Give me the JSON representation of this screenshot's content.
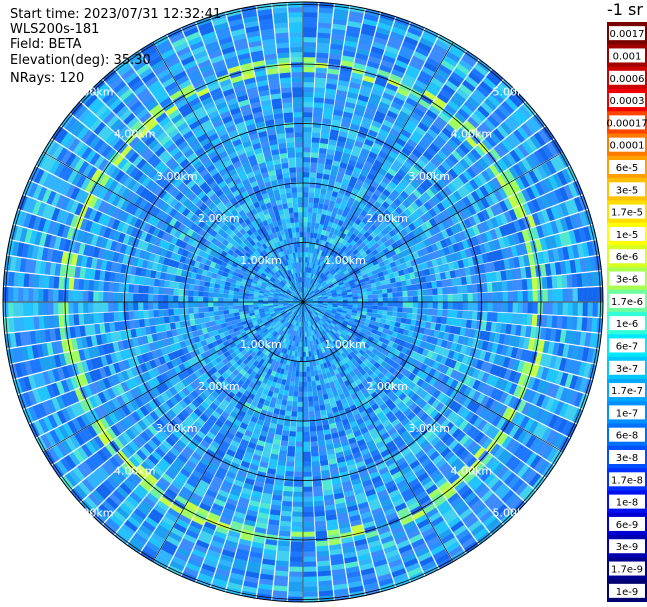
{
  "header": {
    "start_time": "Start time: 2023/07/31 12:32:41",
    "instrument": "WLS200s-181",
    "field": "Field: BETA",
    "elevation": "Elevation(deg): 35.30",
    "nrays": "NRays: 120"
  },
  "colorbar": {
    "unit_label": "-1 sr",
    "levels": [
      "0.0017",
      "0.001",
      "0.0006",
      "0.0003",
      "0.00017",
      "0.0001",
      "6e-5",
      "3e-5",
      "1.7e-5",
      "1e-5",
      "6e-6",
      "3e-6",
      "1.7e-6",
      "1e-6",
      "6e-7",
      "3e-7",
      "1.7e-7",
      "1e-7",
      "6e-8",
      "3e-8",
      "1.7e-8",
      "1e-8",
      "6e-9",
      "3e-9",
      "1.7e-9",
      "1e-9"
    ],
    "colors": [
      "#7a0000",
      "#a00000",
      "#cc0000",
      "#ee0000",
      "#ff4400",
      "#ff7a00",
      "#ff9f00",
      "#ffc000",
      "#ffdf00",
      "#ffff00",
      "#d7ff20",
      "#a8ff50",
      "#70ffa0",
      "#30ffd8",
      "#00e8ff",
      "#00c8ff",
      "#00a8ff",
      "#0090ff",
      "#0070ff",
      "#0050ff",
      "#0030ff",
      "#0010f0",
      "#0000d0",
      "#0000b0",
      "#000090",
      "#000070"
    ]
  },
  "ppi": {
    "n_rays": 120,
    "range_labels": [
      "1.00km",
      "2.00km",
      "3.00km",
      "4.00km",
      "5.00km"
    ]
  }
}
